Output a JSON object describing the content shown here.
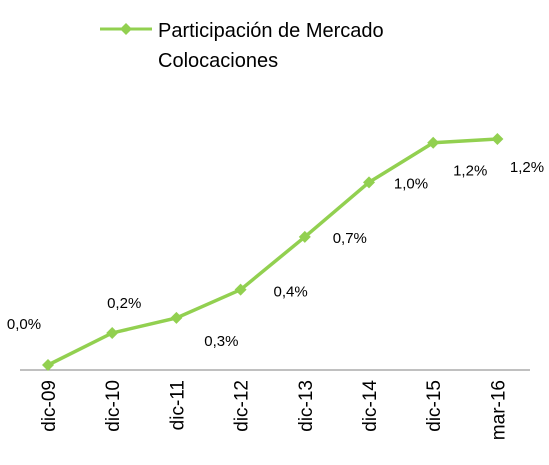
{
  "chart_data": {
    "type": "line",
    "categories": [
      "dic-09",
      "dic-10",
      "dic-11",
      "dic-12",
      "dic-13",
      "dic-14",
      "dic-15",
      "mar-16"
    ],
    "series": [
      {
        "name": "Participación de Mercado Colocaciones",
        "color": "#92d050",
        "values": [
          0.02,
          0.19,
          0.27,
          0.42,
          0.7,
          0.99,
          1.2,
          1.22
        ],
        "value_labels": [
          "0,0%",
          "0,2%",
          "0,3%",
          "0,4%",
          "0,7%",
          "1,0%",
          "1,2%",
          "1,2%"
        ]
      }
    ]
  }
}
